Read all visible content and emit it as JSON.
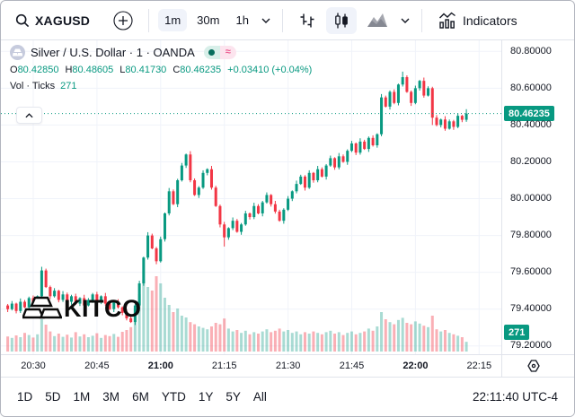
{
  "toolbar": {
    "symbol": "XAGUSD",
    "intervals": [
      {
        "label": "1m",
        "selected": true
      },
      {
        "label": "30m",
        "selected": false
      },
      {
        "label": "1h",
        "selected": false
      }
    ],
    "indicators_label": "Indicators"
  },
  "legend": {
    "title": "Silver / U.S. Dollar · 1 · OANDA",
    "market_status": {
      "dot_color": "#056d5c",
      "approx_symbol": "≈",
      "approx_color": "#ec5a8f"
    },
    "ohlc": [
      [
        "O",
        "80.42850"
      ],
      [
        "H",
        "80.48605"
      ],
      [
        "L",
        "80.41730"
      ],
      [
        "C",
        "80.46235"
      ]
    ],
    "change": "+0.03410 (+0.04%)",
    "vol_label": "Vol · Ticks",
    "vol_value": "271"
  },
  "chart_data": {
    "type": "candlestick",
    "symbol": "XAGUSD",
    "title": "Silver / U.S. Dollar",
    "interval_minutes": 1,
    "exchange": "OANDA",
    "start_time": "20:24",
    "step_minutes": 1,
    "ylim": [
      79.12,
      80.86
    ],
    "grid": true,
    "up_color": "#089981",
    "down_color": "#f23645",
    "vol_up_color": "rgba(8,153,129,0.35)",
    "vol_down_color": "rgba(242,54,69,0.40)",
    "current_price": 80.46235,
    "current_volume": 271,
    "price_ticks": [
      80.8,
      80.6,
      80.4,
      80.2,
      80.0,
      79.8,
      79.6,
      79.4,
      79.2
    ],
    "time_ticks": [
      {
        "label": "20:30",
        "bold": false
      },
      {
        "label": "20:45",
        "bold": false
      },
      {
        "label": "21:00",
        "bold": true
      },
      {
        "label": "21:15",
        "bold": false
      },
      {
        "label": "21:30",
        "bold": false
      },
      {
        "label": "21:45",
        "bold": false
      },
      {
        "label": "22:00",
        "bold": true
      },
      {
        "label": "22:15",
        "bold": false
      }
    ],
    "first_open": 79.42,
    "candles": [
      [
        79.4,
        420
      ],
      [
        79.43,
        380
      ],
      [
        79.39,
        450
      ],
      [
        79.44,
        400
      ],
      [
        79.41,
        520
      ],
      [
        79.46,
        460
      ],
      [
        79.43,
        390
      ],
      [
        79.47,
        480
      ],
      [
        79.61,
        900
      ],
      [
        79.52,
        750
      ],
      [
        79.47,
        560
      ],
      [
        79.5,
        430
      ],
      [
        79.45,
        500
      ],
      [
        79.48,
        410
      ],
      [
        79.44,
        470
      ],
      [
        79.47,
        390
      ],
      [
        79.43,
        540
      ],
      [
        79.46,
        420
      ],
      [
        79.42,
        480
      ],
      [
        79.45,
        400
      ],
      [
        79.48,
        440
      ],
      [
        79.44,
        510
      ],
      [
        79.47,
        380
      ],
      [
        79.43,
        460
      ],
      [
        79.4,
        430
      ],
      [
        79.44,
        490
      ],
      [
        79.41,
        410
      ],
      [
        79.38,
        550
      ],
      [
        79.35,
        600
      ],
      [
        79.33,
        680
      ],
      [
        79.42,
        1200
      ],
      [
        79.54,
        1600
      ],
      [
        79.68,
        2000
      ],
      [
        79.8,
        1800
      ],
      [
        79.73,
        1700
      ],
      [
        79.66,
        2100
      ],
      [
        79.78,
        1900
      ],
      [
        79.92,
        1500
      ],
      [
        80.04,
        1300
      ],
      [
        79.97,
        1100
      ],
      [
        80.1,
        1200
      ],
      [
        80.18,
        1000
      ],
      [
        80.24,
        950
      ],
      [
        80.1,
        820
      ],
      [
        80.02,
        760
      ],
      [
        80.06,
        700
      ],
      [
        80.14,
        660
      ],
      [
        80.16,
        620
      ],
      [
        80.06,
        700
      ],
      [
        79.96,
        800
      ],
      [
        79.86,
        760
      ],
      [
        79.79,
        920
      ],
      [
        79.84,
        640
      ],
      [
        79.88,
        560
      ],
      [
        79.82,
        600
      ],
      [
        79.86,
        520
      ],
      [
        79.92,
        580
      ],
      [
        79.9,
        480
      ],
      [
        79.96,
        540
      ],
      [
        79.92,
        500
      ],
      [
        79.98,
        560
      ],
      [
        80.02,
        620
      ],
      [
        79.97,
        540
      ],
      [
        79.93,
        580
      ],
      [
        79.88,
        640
      ],
      [
        79.94,
        560
      ],
      [
        80.0,
        600
      ],
      [
        80.04,
        520
      ],
      [
        80.08,
        560
      ],
      [
        80.12,
        480
      ],
      [
        80.06,
        540
      ],
      [
        80.14,
        500
      ],
      [
        80.1,
        560
      ],
      [
        80.16,
        520
      ],
      [
        80.12,
        480
      ],
      [
        80.18,
        540
      ],
      [
        80.22,
        580
      ],
      [
        80.17,
        500
      ],
      [
        80.23,
        540
      ],
      [
        80.2,
        460
      ],
      [
        80.26,
        520
      ],
      [
        80.3,
        560
      ],
      [
        80.25,
        480
      ],
      [
        80.31,
        520
      ],
      [
        80.27,
        560
      ],
      [
        80.33,
        640
      ],
      [
        80.29,
        580
      ],
      [
        80.35,
        700
      ],
      [
        80.55,
        1100
      ],
      [
        80.5,
        900
      ],
      [
        80.58,
        820
      ],
      [
        80.52,
        760
      ],
      [
        80.62,
        880
      ],
      [
        80.66,
        940
      ],
      [
        80.58,
        800
      ],
      [
        80.52,
        760
      ],
      [
        80.6,
        840
      ],
      [
        80.64,
        780
      ],
      [
        80.56,
        720
      ],
      [
        80.6,
        680
      ],
      [
        80.44,
        1000
      ],
      [
        80.4,
        620
      ],
      [
        80.43,
        560
      ],
      [
        80.38,
        600
      ],
      [
        80.42,
        520
      ],
      [
        80.39,
        480
      ],
      [
        80.45,
        440
      ],
      [
        80.4285,
        400
      ],
      [
        80.46235,
        271
      ]
    ],
    "wick_overrides": {
      "8": {
        "h": 79.63
      },
      "51": {
        "l": 79.74
      },
      "93": {
        "h": 80.69
      },
      "100": {
        "l": 80.4
      }
    },
    "last_candle": {
      "o": 80.4285,
      "h": 80.48605,
      "l": 80.4173,
      "c": 80.46235
    }
  },
  "bottom_toolbar": {
    "ranges": [
      "1D",
      "5D",
      "1M",
      "3M",
      "6M",
      "YTD",
      "1Y",
      "5Y",
      "All"
    ],
    "clock": "22:11:40 UTC-4"
  },
  "watermark": {
    "text": "KITCO"
  }
}
